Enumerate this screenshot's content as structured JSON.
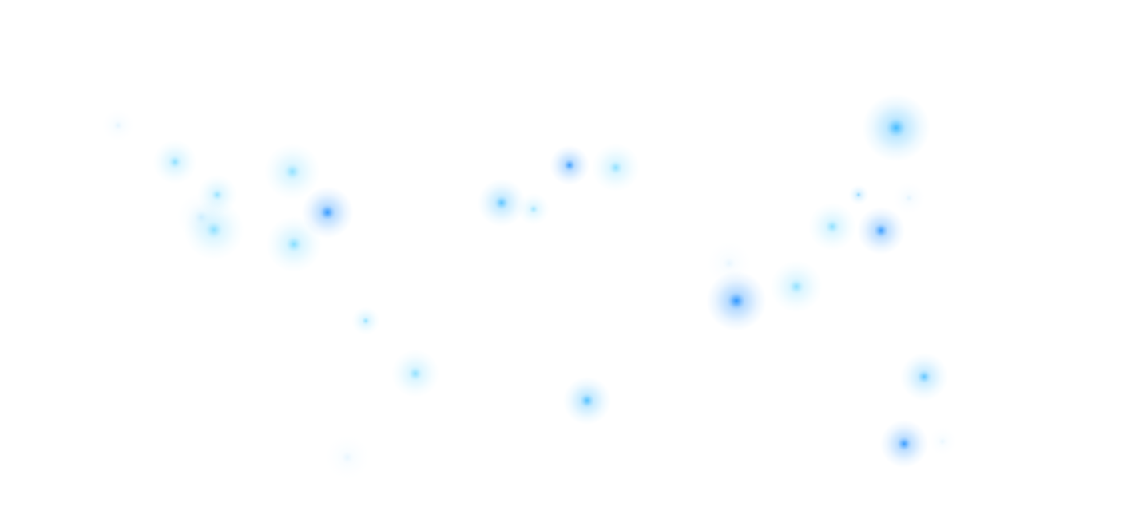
{
  "map": {
    "background_color": "#ffffff",
    "palette": {
      "deep_blue": "#1f8fff",
      "sky_blue": "#3bb8ff",
      "aqua": "#5fd3ff",
      "faint": "#bfe7ff"
    },
    "hotspots": [
      {
        "id": "hotspot-1",
        "intensity": 0.3,
        "tone": "faint"
      },
      {
        "id": "hotspot-2",
        "intensity": 0.55,
        "tone": "aqua"
      },
      {
        "id": "hotspot-3",
        "intensity": 0.5,
        "tone": "aqua"
      },
      {
        "id": "hotspot-4",
        "intensity": 0.45,
        "tone": "faint"
      },
      {
        "id": "hotspot-5",
        "intensity": 0.55,
        "tone": "aqua"
      },
      {
        "id": "hotspot-6",
        "intensity": 0.55,
        "tone": "aqua"
      },
      {
        "id": "hotspot-7",
        "intensity": 0.8,
        "tone": "deep_blue"
      },
      {
        "id": "hotspot-8",
        "intensity": 0.6,
        "tone": "aqua"
      },
      {
        "id": "hotspot-9",
        "intensity": 0.7,
        "tone": "sky_blue"
      },
      {
        "id": "hotspot-10",
        "intensity": 0.45,
        "tone": "aqua"
      },
      {
        "id": "hotspot-11",
        "intensity": 0.75,
        "tone": "deep_blue"
      },
      {
        "id": "hotspot-12",
        "intensity": 0.55,
        "tone": "aqua"
      },
      {
        "id": "hotspot-13",
        "intensity": 0.5,
        "tone": "aqua"
      },
      {
        "id": "hotspot-14",
        "intensity": 0.55,
        "tone": "aqua"
      },
      {
        "id": "hotspot-15",
        "intensity": 0.25,
        "tone": "faint"
      },
      {
        "id": "hotspot-16",
        "intensity": 0.75,
        "tone": "sky_blue"
      },
      {
        "id": "hotspot-17",
        "intensity": 0.85,
        "tone": "sky_blue"
      },
      {
        "id": "hotspot-18",
        "intensity": 0.45,
        "tone": "sky_blue"
      },
      {
        "id": "hotspot-19",
        "intensity": 0.3,
        "tone": "faint"
      },
      {
        "id": "hotspot-20",
        "intensity": 0.55,
        "tone": "aqua"
      },
      {
        "id": "hotspot-21",
        "intensity": 0.75,
        "tone": "deep_blue"
      },
      {
        "id": "hotspot-22",
        "intensity": 0.25,
        "tone": "faint"
      },
      {
        "id": "hotspot-23",
        "intensity": 0.85,
        "tone": "deep_blue"
      },
      {
        "id": "hotspot-24",
        "intensity": 0.55,
        "tone": "aqua"
      },
      {
        "id": "hotspot-25",
        "intensity": 0.65,
        "tone": "sky_blue"
      },
      {
        "id": "hotspot-26",
        "intensity": 0.75,
        "tone": "deep_blue"
      },
      {
        "id": "hotspot-27",
        "intensity": 0.25,
        "tone": "faint"
      }
    ]
  }
}
